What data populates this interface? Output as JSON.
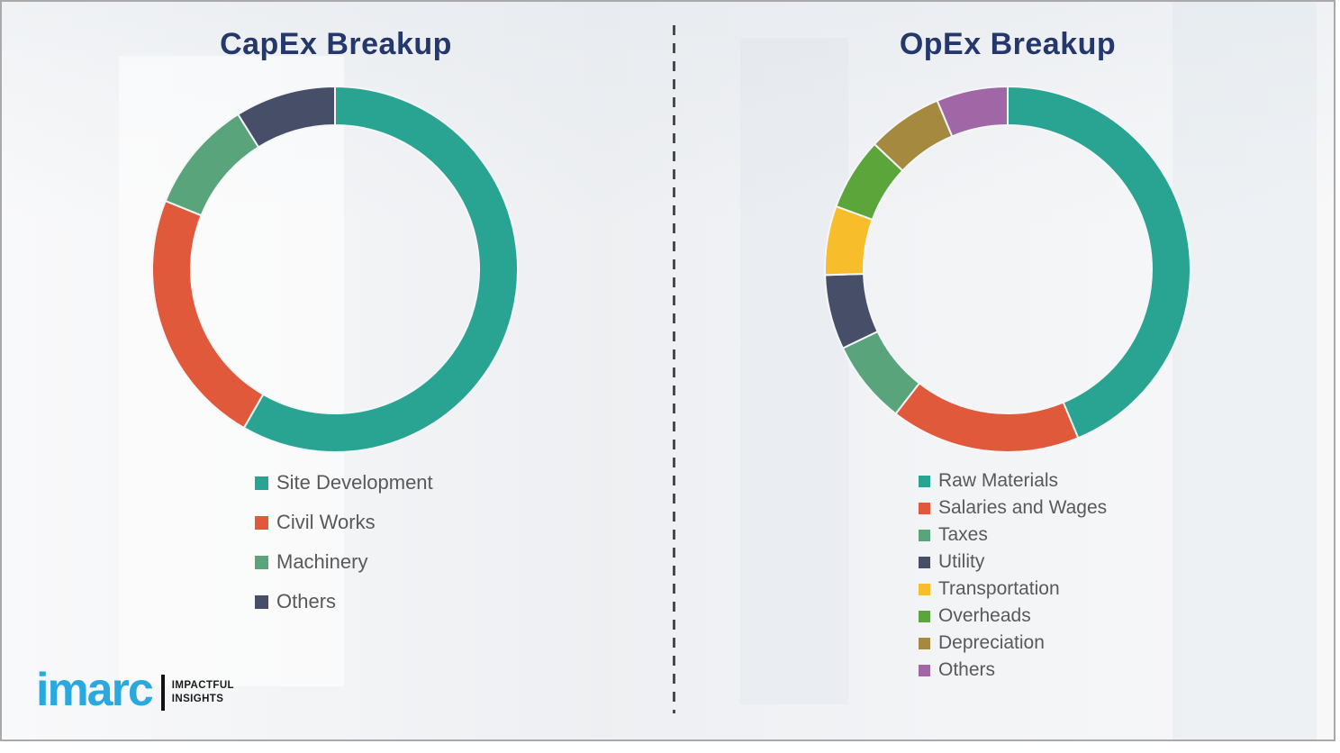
{
  "page": {
    "background_color": "#f1f2f4",
    "border_color": "#a9a9a9",
    "divider_color": "#4a4a4a",
    "title_color": "#24386b",
    "legend_text_color": "#595959"
  },
  "chart_data": [
    {
      "type": "pie",
      "subtype": "donut",
      "title": "CapEx Breakup",
      "categories": [
        "Site Development",
        "Civil Works",
        "Machinery",
        "Others"
      ],
      "values": [
        58.3,
        22.8,
        10.0,
        8.9
      ],
      "values_note": "percent, estimated from arc angles; no numeric labels shown in image",
      "colors": [
        "#2aa492",
        "#e0593b",
        "#5aa47c",
        "#474e67"
      ],
      "start_angle_deg": 0,
      "direction": "clockwise",
      "legend_position": "below-left"
    },
    {
      "type": "pie",
      "subtype": "donut",
      "title": "OpEx Breakup",
      "categories": [
        "Raw Materials",
        "Salaries and Wages",
        "Taxes",
        "Utility",
        "Transportation",
        "Overheads",
        "Depreciation",
        "Others"
      ],
      "values": [
        43.7,
        16.8,
        7.4,
        6.6,
        6.1,
        6.4,
        6.7,
        6.3
      ],
      "values_note": "percent, estimated from arc angles; no numeric labels shown in image",
      "colors": [
        "#2aa492",
        "#e0593b",
        "#5aa47c",
        "#474e67",
        "#f8bd2b",
        "#5ca53a",
        "#a5893f",
        "#a066a6"
      ],
      "start_angle_deg": 0,
      "direction": "clockwise",
      "legend_position": "below-left"
    }
  ],
  "logo": {
    "brand": "imarc",
    "brand_color": "#29a9e0",
    "tagline_line1": "IMPACTFUL",
    "tagline_line2": "INSIGHTS"
  }
}
